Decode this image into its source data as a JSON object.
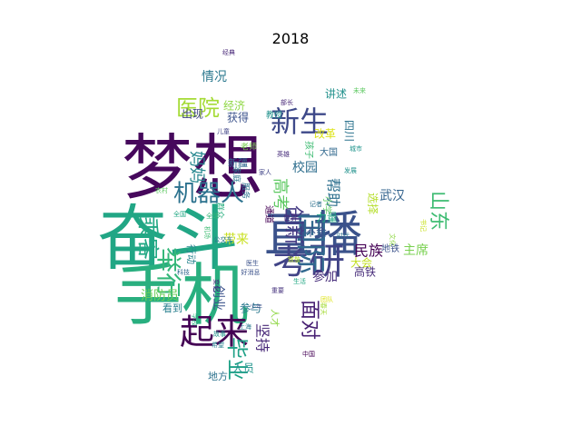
{
  "title": "2018",
  "chart_data": {
    "type": "wordcloud",
    "title": "2018",
    "colormap": "viridis",
    "words": [
      {
        "text": "梦想",
        "weight": 1.0,
        "color": "#46085c"
      },
      {
        "text": "奋斗",
        "weight": 0.98,
        "color": "#21a685"
      },
      {
        "text": "手机",
        "weight": 0.88,
        "color": "#29af7f"
      },
      {
        "text": "直播",
        "weight": 0.8,
        "color": "#3b528b"
      },
      {
        "text": "考研",
        "weight": 0.58,
        "color": "#414487"
      },
      {
        "text": "起来",
        "weight": 0.52,
        "color": "#440154"
      },
      {
        "text": "新生",
        "weight": 0.46,
        "color": "#3e4989"
      },
      {
        "text": "国际",
        "weight": 0.44,
        "color": "#31688e"
      },
      {
        "text": "机器人",
        "weight": 0.4,
        "color": "#2c728e"
      },
      {
        "text": "医院",
        "weight": 0.38,
        "color": "#a5db36"
      },
      {
        "text": "举行",
        "weight": 0.38,
        "color": "#35b779"
      },
      {
        "text": "乘客",
        "weight": 0.36,
        "color": "#22a884"
      },
      {
        "text": "毕业",
        "weight": 0.34,
        "color": "#1fa187"
      },
      {
        "text": "面对",
        "weight": 0.32,
        "color": "#482173"
      },
      {
        "text": "山东",
        "weight": 0.3,
        "color": "#3fbc73"
      },
      {
        "text": "创新",
        "weight": 0.3,
        "color": "#443983"
      },
      {
        "text": "妈妈",
        "weight": 0.24,
        "color": "#24868e"
      },
      {
        "text": "情况",
        "weight": 0.22,
        "color": "#2a788e"
      },
      {
        "text": "高考",
        "weight": 0.22,
        "color": "#5ec962"
      },
      {
        "text": "帮助",
        "weight": 0.22,
        "color": "#2d708e"
      },
      {
        "text": "消防员",
        "weight": 0.22,
        "color": "#6ece58"
      },
      {
        "text": "创业",
        "weight": 0.22,
        "color": "#3b528b"
      },
      {
        "text": "坚持",
        "weight": 0.22,
        "color": "#482878"
      },
      {
        "text": "参加",
        "weight": 0.2,
        "color": "#472d7b"
      },
      {
        "text": "民族",
        "weight": 0.2,
        "color": "#440154"
      },
      {
        "text": "主席",
        "weight": 0.2,
        "color": "#7ad151"
      },
      {
        "text": "校园",
        "weight": 0.2,
        "color": "#2e6e8e"
      },
      {
        "text": "武汉",
        "weight": 0.18,
        "color": "#33638d"
      },
      {
        "text": "选择",
        "weight": 0.18,
        "color": "#b5de2b"
      },
      {
        "text": "四川",
        "weight": 0.16,
        "color": "#2c738e"
      },
      {
        "text": "带来",
        "weight": 0.18,
        "color": "#c8e020"
      },
      {
        "text": "人员",
        "weight": 0.16,
        "color": "#1f948c"
      },
      {
        "text": "参与",
        "weight": 0.16,
        "color": "#2a788e"
      },
      {
        "text": "讲述",
        "weight": 0.15,
        "color": "#21918c"
      },
      {
        "text": "获得",
        "weight": 0.15,
        "color": "#3b528b"
      },
      {
        "text": "出现",
        "weight": 0.14,
        "color": "#414487"
      },
      {
        "text": "经济",
        "weight": 0.14,
        "color": "#8fd744"
      },
      {
        "text": "改革",
        "weight": 0.14,
        "color": "#dde318"
      },
      {
        "text": "力量",
        "weight": 0.14,
        "color": "#22a884"
      },
      {
        "text": "不会",
        "weight": 0.14,
        "color": "#3b528b"
      },
      {
        "text": "大会",
        "weight": 0.14,
        "color": "#c2df23"
      },
      {
        "text": "高铁",
        "weight": 0.14,
        "color": "#472c7a"
      },
      {
        "text": "新疆",
        "weight": 0.13,
        "color": "#31688e"
      },
      {
        "text": "地方",
        "weight": 0.13,
        "color": "#2c728e"
      },
      {
        "text": "看到",
        "weight": 0.13,
        "color": "#277f8e"
      },
      {
        "text": "行动",
        "weight": 0.13,
        "color": "#25848e"
      },
      {
        "text": "人才",
        "weight": 0.12,
        "color": "#8fd744"
      },
      {
        "text": "地铁",
        "weight": 0.12,
        "color": "#3b528b"
      },
      {
        "text": "小学",
        "weight": 0.12,
        "color": "#5ec962"
      },
      {
        "text": "孩子",
        "weight": 0.12,
        "color": "#3fbc73"
      },
      {
        "text": "家庭",
        "weight": 0.11,
        "color": "#2a788e"
      },
      {
        "text": "大国",
        "weight": 0.11,
        "color": "#31688e"
      },
      {
        "text": "服务",
        "weight": 0.11,
        "color": "#2c728e"
      },
      {
        "text": "通道",
        "weight": 0.11,
        "color": "#440154"
      },
      {
        "text": "教授",
        "weight": 0.1,
        "color": "#21918c"
      },
      {
        "text": "群众",
        "weight": 0.1,
        "color": "#29af7f"
      },
      {
        "text": "老师",
        "weight": 0.1,
        "color": "#7ad151"
      },
      {
        "text": "部长",
        "weight": 0.08,
        "color": "#482878"
      },
      {
        "text": "经典",
        "weight": 0.07,
        "color": "#482878"
      },
      {
        "text": "好消息",
        "weight": 0.08,
        "color": "#3b528b"
      },
      {
        "text": "全球",
        "weight": 0.08,
        "color": "#35b779"
      },
      {
        "text": "上海",
        "weight": 0.07,
        "color": "#2a788e"
      },
      {
        "text": "农村",
        "weight": 0.07,
        "color": "#5ec962"
      },
      {
        "text": "全国",
        "weight": 0.07,
        "color": "#22a884"
      },
      {
        "text": "儿童",
        "weight": 0.07,
        "color": "#414487"
      },
      {
        "text": "城市",
        "weight": 0.07,
        "color": "#1f948c"
      },
      {
        "text": "公交车",
        "weight": 0.07,
        "color": "#2c728e"
      },
      {
        "text": "医生",
        "weight": 0.07,
        "color": "#3b528b"
      },
      {
        "text": "变化",
        "weight": 0.07,
        "color": "#482878"
      },
      {
        "text": "致敬",
        "weight": 0.07,
        "color": "#b5de2b"
      },
      {
        "text": "书记",
        "weight": 0.07,
        "color": "#c8e020"
      },
      {
        "text": "重要",
        "weight": 0.07,
        "color": "#46337e"
      },
      {
        "text": "希望",
        "weight": 0.07,
        "color": "#277f8e"
      },
      {
        "text": "记者",
        "weight": 0.07,
        "color": "#2d708e"
      },
      {
        "text": "中国",
        "weight": 0.07,
        "color": "#440154"
      },
      {
        "text": "发展",
        "weight": 0.07,
        "color": "#21918c"
      },
      {
        "text": "未来",
        "weight": 0.07,
        "color": "#5ec962"
      },
      {
        "text": "家人",
        "weight": 0.07,
        "color": "#414487"
      },
      {
        "text": "春天",
        "weight": 0.07,
        "color": "#a5db36"
      },
      {
        "text": "科技",
        "weight": 0.07,
        "color": "#31688e"
      },
      {
        "text": "机场",
        "weight": 0.07,
        "color": "#3fbc73"
      },
      {
        "text": "学校",
        "weight": 0.07,
        "color": "#29af7f"
      },
      {
        "text": "英雄",
        "weight": 0.07,
        "color": "#472d7b"
      },
      {
        "text": "时代",
        "weight": 0.07,
        "color": "#2c728e"
      },
      {
        "text": "文化",
        "weight": 0.07,
        "color": "#8fd744"
      },
      {
        "text": "生活",
        "weight": 0.07,
        "color": "#22a884"
      },
      {
        "text": "少年",
        "weight": 0.07,
        "color": "#3b528b"
      },
      {
        "text": "团队",
        "weight": 0.07,
        "color": "#dde318"
      },
      {
        "text": "故事",
        "weight": 0.07,
        "color": "#1f948c"
      },
      {
        "text": "世界",
        "weight": 0.07,
        "color": "#482878"
      }
    ]
  }
}
